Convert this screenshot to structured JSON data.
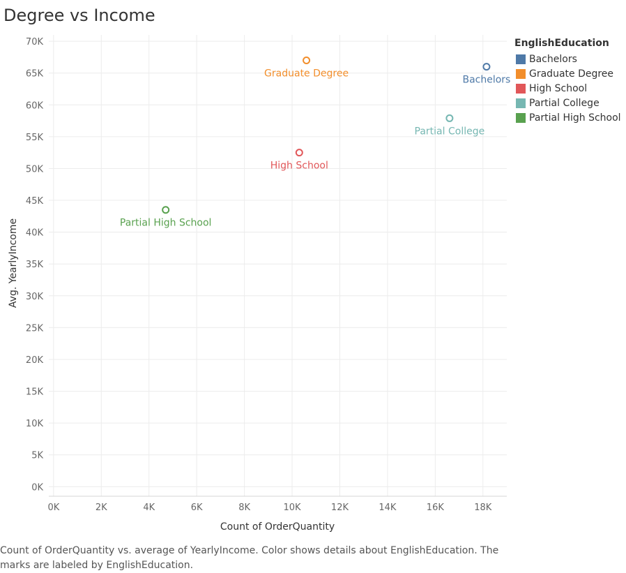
{
  "title": "Degree vs Income",
  "legend": {
    "title": "EnglishEducation",
    "items": [
      {
        "label": "Bachelors",
        "color": "#4e79a7"
      },
      {
        "label": "Graduate Degree",
        "color": "#f28e2b"
      },
      {
        "label": "High School",
        "color": "#e15759"
      },
      {
        "label": "Partial College",
        "color": "#76b7b2"
      },
      {
        "label": "Partial High School",
        "color": "#59a14f"
      }
    ]
  },
  "caption": "Count of OrderQuantity vs. average of YearlyIncome.  Color shows details about EnglishEducation.  The marks are labeled by EnglishEducation.",
  "chart_data": {
    "type": "scatter",
    "title": "Degree vs Income",
    "xlabel": "Count of OrderQuantity",
    "ylabel": "Avg. YearlyIncome",
    "xlim": [
      -200,
      19000
    ],
    "ylim": [
      -1500,
      71000
    ],
    "x_ticks": [
      0,
      2000,
      4000,
      6000,
      8000,
      10000,
      12000,
      14000,
      16000,
      18000
    ],
    "x_tick_labels": [
      "0K",
      "2K",
      "4K",
      "6K",
      "8K",
      "10K",
      "12K",
      "14K",
      "16K",
      "18K"
    ],
    "y_ticks": [
      0,
      5000,
      10000,
      15000,
      20000,
      25000,
      30000,
      35000,
      40000,
      45000,
      50000,
      55000,
      60000,
      65000,
      70000
    ],
    "y_tick_labels": [
      "0K",
      "5K",
      "10K",
      "15K",
      "20K",
      "25K",
      "30K",
      "35K",
      "40K",
      "45K",
      "50K",
      "55K",
      "60K",
      "65K",
      "70K"
    ],
    "grid": true,
    "legend_position": "right",
    "points": [
      {
        "label": "Bachelors",
        "x": 18150,
        "y": 66000,
        "color": "#4e79a7"
      },
      {
        "label": "Graduate Degree",
        "x": 10600,
        "y": 67000,
        "color": "#f28e2b"
      },
      {
        "label": "High School",
        "x": 10300,
        "y": 52500,
        "color": "#e15759"
      },
      {
        "label": "Partial College",
        "x": 16600,
        "y": 57900,
        "color": "#76b7b2"
      },
      {
        "label": "Partial High School",
        "x": 4700,
        "y": 43500,
        "color": "#59a14f"
      }
    ]
  }
}
